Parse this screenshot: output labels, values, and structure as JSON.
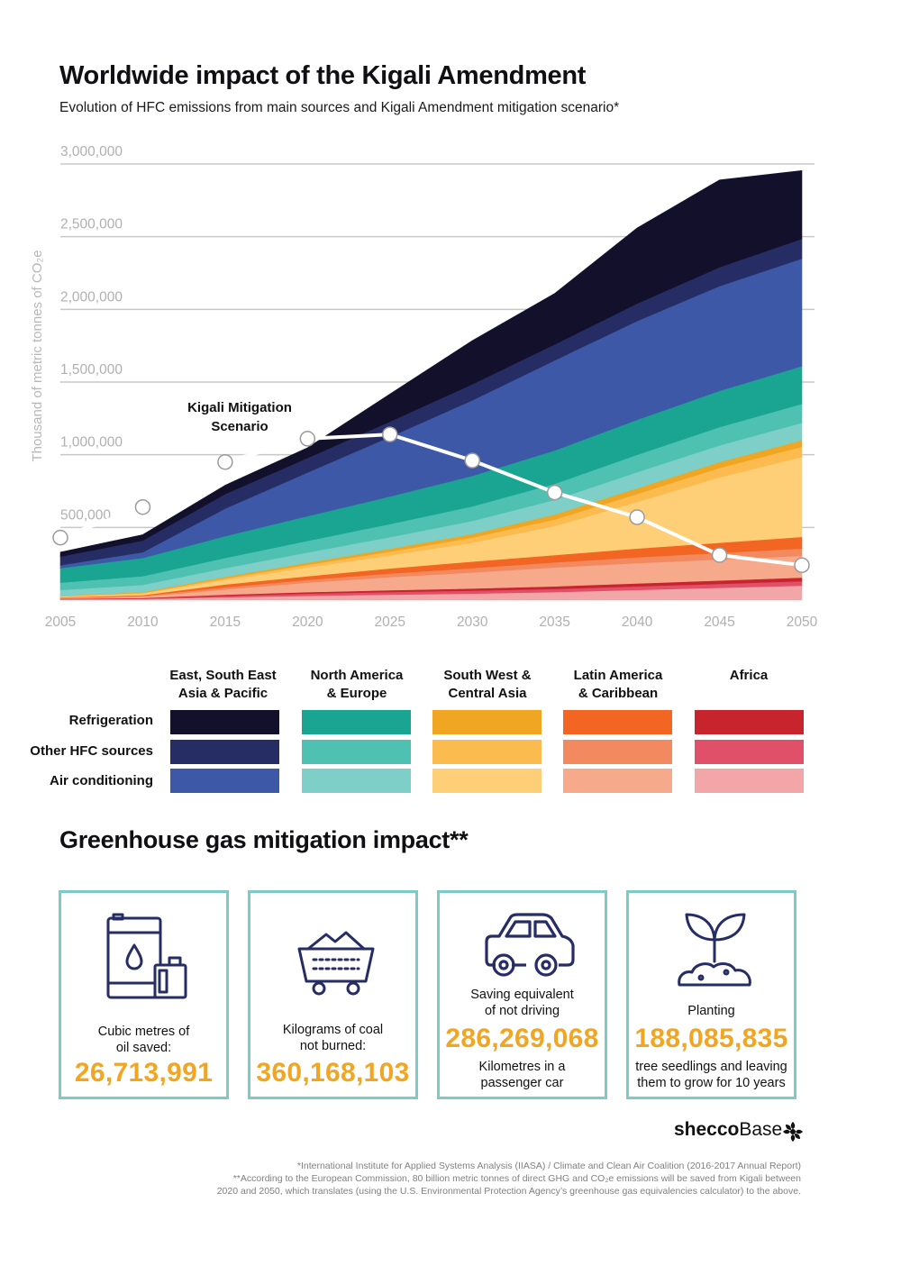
{
  "header": {
    "title": "Worldwide impact of the Kigali Amendment",
    "subtitle": "Evolution of HFC emissions from main sources and Kigali Amendment mitigation scenario*"
  },
  "chart_data": {
    "type": "area",
    "stacked": true,
    "ylabel": "Thousand of metric tonnes of CO₂e",
    "ylim": [
      0,
      3000000
    ],
    "yticks": [
      500000,
      1000000,
      1500000,
      2000000,
      2500000,
      3000000
    ],
    "ytick_labels": [
      "500,000",
      "1,000,000",
      "1,500,000",
      "2,000,000",
      "2,500,000",
      "3,000,000"
    ],
    "grid": true,
    "x": [
      2005,
      2010,
      2015,
      2020,
      2025,
      2030,
      2035,
      2040,
      2045,
      2050
    ],
    "x_labels": [
      "2005",
      "2010",
      "2015",
      "2020",
      "2025",
      "2030",
      "2035",
      "2040",
      "2045",
      "2050"
    ],
    "series_order_bottom_to_top": [
      "africa-ac",
      "africa-other",
      "africa-ref",
      "latam-ac",
      "latam-other",
      "latam-ref",
      "swca-ac",
      "swca-other",
      "swca-ref",
      "na-ac",
      "na-other",
      "na-ref",
      "asia-ac",
      "asia-other",
      "asia-ref"
    ],
    "series": [
      {
        "id": "africa-ac",
        "color": "#f2a6a8",
        "values": [
          5000,
          8000,
          20000,
          30000,
          38000,
          45000,
          55000,
          70000,
          85000,
          100000
        ]
      },
      {
        "id": "africa-other",
        "color": "#e05068",
        "values": [
          3000,
          4000,
          10000,
          15000,
          18000,
          20000,
          22000,
          25000,
          27000,
          30000
        ]
      },
      {
        "id": "africa-ref",
        "color": "#c7242e",
        "values": [
          2000,
          3000,
          8000,
          10000,
          12000,
          15000,
          18000,
          20000,
          23000,
          25000
        ]
      },
      {
        "id": "latam-ac",
        "color": "#f7a98c",
        "values": [
          5000,
          10000,
          35000,
          65000,
          90000,
          110000,
          130000,
          140000,
          145000,
          150000
        ]
      },
      {
        "id": "latam-other",
        "color": "#f2895f",
        "values": [
          3000,
          5000,
          15000,
          20000,
          25000,
          30000,
          35000,
          40000,
          45000,
          50000
        ]
      },
      {
        "id": "latam-ref",
        "color": "#f26522",
        "values": [
          2000,
          5000,
          20000,
          25000,
          35000,
          45000,
          50000,
          60000,
          70000,
          80000
        ]
      },
      {
        "id": "swca-ac",
        "color": "#fecf76",
        "values": [
          5000,
          10000,
          30000,
          60000,
          90000,
          130000,
          200000,
          320000,
          450000,
          550000
        ]
      },
      {
        "id": "swca-other",
        "color": "#fbbb4f",
        "values": [
          2000,
          5000,
          12000,
          18000,
          25000,
          35000,
          45000,
          55000,
          65000,
          70000
        ]
      },
      {
        "id": "swca-ref",
        "color": "#f0a623",
        "values": [
          3000,
          5000,
          10000,
          15000,
          20000,
          25000,
          35000,
          40000,
          40000,
          45000
        ]
      },
      {
        "id": "na-ac",
        "color": "#7dcfc7",
        "values": [
          40000,
          50000,
          60000,
          70000,
          80000,
          90000,
          100000,
          110000,
          115000,
          120000
        ]
      },
      {
        "id": "na-other",
        "color": "#4fc1b3",
        "values": [
          50000,
          60000,
          70000,
          80000,
          90000,
          100000,
          110000,
          120000,
          125000,
          130000
        ]
      },
      {
        "id": "na-ref",
        "color": "#1aa592",
        "values": [
          100000,
          125000,
          150000,
          170000,
          190000,
          210000,
          230000,
          240000,
          250000,
          260000
        ]
      },
      {
        "id": "asia-ac",
        "color": "#3d58a6",
        "values": [
          20000,
          40000,
          190000,
          300000,
          410000,
          520000,
          620000,
          680000,
          720000,
          740000
        ]
      },
      {
        "id": "asia-other",
        "color": "#262d65",
        "values": [
          60000,
          80000,
          100000,
          100000,
          105000,
          110000,
          110000,
          120000,
          130000,
          135000
        ]
      },
      {
        "id": "asia-ref",
        "color": "#12102b",
        "values": [
          30000,
          40000,
          60000,
          70000,
          190000,
          300000,
          350000,
          520000,
          600000,
          470000
        ]
      }
    ],
    "mitigation": {
      "label_line1": "Kigali Mitigation",
      "label_line2": "Scenario",
      "x": [
        2005,
        2010,
        2015,
        2020,
        2025,
        2030,
        2035,
        2040,
        2045,
        2050
      ],
      "values": [
        430000,
        640000,
        950000,
        1110000,
        1140000,
        960000,
        740000,
        570000,
        310000,
        240000
      ]
    }
  },
  "legend": {
    "columns": [
      {
        "line1": "East, South East",
        "line2": "Asia & Pacific",
        "colors": [
          "#12102b",
          "#262d65",
          "#3d58a6"
        ]
      },
      {
        "line1": "North America",
        "line2": "& Europe",
        "colors": [
          "#1aa592",
          "#4fc1b3",
          "#7dcfc7"
        ]
      },
      {
        "line1": "South West &",
        "line2": "Central Asia",
        "colors": [
          "#f0a623",
          "#fbbb4f",
          "#fecf76"
        ]
      },
      {
        "line1": "Latin America",
        "line2": "& Caribbean",
        "colors": [
          "#f26522",
          "#f2895f",
          "#f7a98c"
        ]
      },
      {
        "line1": "",
        "line2": "Africa",
        "colors": [
          "#c7242e",
          "#e05068",
          "#f2a6a8"
        ]
      }
    ],
    "rows": [
      "Refrigeration",
      "Other HFC sources",
      "Air conditioning"
    ]
  },
  "impact": {
    "title": "Greenhouse gas mitigation impact**",
    "cards": [
      {
        "icon": "oil-barrel-icon",
        "pre1": "",
        "pre2": "",
        "cap1": "Cubic metres of",
        "cap2": "oil saved:",
        "value": "26,713,991",
        "post1": "",
        "post2": ""
      },
      {
        "icon": "coal-cart-icon",
        "pre1": "",
        "pre2": "",
        "cap1": "Kilograms of coal",
        "cap2": "not burned:",
        "value": "360,168,103",
        "post1": "",
        "post2": ""
      },
      {
        "icon": "car-icon",
        "pre1": "Saving equivalent",
        "pre2": "of not driving",
        "cap1": "",
        "cap2": "",
        "value": "286,269,068",
        "post1": "Kilometres in a",
        "post2": "passenger car"
      },
      {
        "icon": "seedling-icon",
        "pre1": "Planting",
        "pre2": "",
        "cap1": "",
        "cap2": "",
        "value": "188,085,835",
        "post1": "tree seedlings and leaving",
        "post2": "them to grow for 10 years"
      }
    ],
    "accent_color": "#f0a623",
    "border_color": "#7ccbc6"
  },
  "brand": {
    "part1": "shecco",
    "part2": "Base"
  },
  "footnotes": {
    "line1": "*International Institute for Applied Systems Analysis (IIASA) / Climate and Clean Air Coalition (2016-2017 Annual Report)",
    "line2": "**According to the European Commission, 80 billion metric tonnes of direct GHG and CO₂e emissions will be saved from Kigali between",
    "line3": "2020 and 2050, which translates (using the U.S. Environmental Protection Agency’s greenhouse gas equivalencies calculator) to the above."
  }
}
